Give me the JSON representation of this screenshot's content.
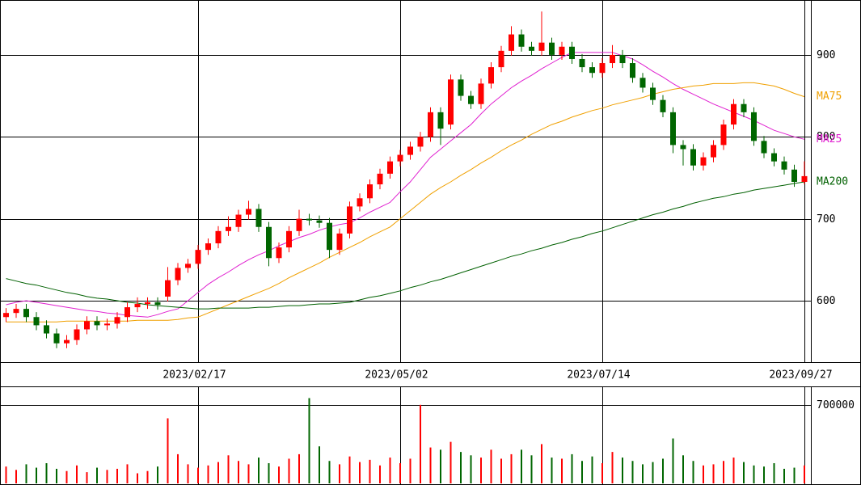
{
  "chart_data": [
    {
      "type": "candlestick",
      "categories": [
        null,
        null,
        null,
        null,
        null,
        null,
        null,
        null,
        null,
        null,
        null,
        null,
        null,
        null,
        null,
        null,
        null,
        null,
        null,
        "2023/02/17",
        null,
        null,
        null,
        null,
        null,
        null,
        null,
        null,
        null,
        null,
        null,
        null,
        null,
        null,
        null,
        null,
        null,
        null,
        null,
        "2023/05/02",
        null,
        null,
        null,
        null,
        null,
        null,
        null,
        null,
        null,
        null,
        null,
        null,
        null,
        null,
        null,
        null,
        null,
        null,
        null,
        "2023/07/14",
        null,
        null,
        null,
        null,
        null,
        null,
        null,
        null,
        null,
        null,
        null,
        null,
        null,
        null,
        null,
        null,
        null,
        null,
        null,
        "2023/09/27"
      ],
      "open": [
        580,
        585,
        590,
        580,
        570,
        560,
        548,
        552,
        565,
        575,
        570,
        572,
        580,
        592,
        596,
        598,
        605,
        625,
        640,
        645,
        662,
        670,
        685,
        690,
        705,
        712,
        690,
        652,
        665,
        685,
        700,
        698,
        695,
        662,
        682,
        715,
        725,
        742,
        755,
        770,
        778,
        788,
        800,
        830,
        815,
        870,
        850,
        840,
        865,
        885,
        905,
        925,
        910,
        905,
        915,
        900,
        910,
        895,
        885,
        878,
        890,
        900,
        890,
        872,
        860,
        845,
        830,
        790,
        785,
        765,
        775,
        790,
        815,
        840,
        830,
        795,
        780,
        770,
        760,
        745
      ],
      "high": [
        591,
        596,
        596,
        586,
        576,
        566,
        558,
        571,
        581,
        581,
        578,
        586,
        598,
        604,
        604,
        604,
        641,
        646,
        651,
        668,
        676,
        691,
        703,
        711,
        722,
        718,
        696,
        671,
        691,
        711,
        706,
        704,
        701,
        688,
        721,
        731,
        748,
        761,
        776,
        784,
        794,
        806,
        836,
        836,
        876,
        876,
        856,
        871,
        891,
        911,
        935,
        931,
        916,
        953,
        921,
        916,
        916,
        901,
        891,
        896,
        912,
        906,
        896,
        878,
        866,
        851,
        836,
        796,
        791,
        781,
        796,
        821,
        846,
        846,
        836,
        801,
        786,
        776,
        766,
        770
      ],
      "low": [
        574,
        579,
        574,
        564,
        554,
        542,
        542,
        546,
        559,
        564,
        564,
        566,
        574,
        586,
        590,
        589,
        599,
        619,
        634,
        639,
        656,
        664,
        679,
        684,
        699,
        684,
        642,
        646,
        659,
        679,
        692,
        689,
        652,
        656,
        676,
        709,
        719,
        736,
        749,
        764,
        772,
        782,
        794,
        790,
        809,
        844,
        834,
        834,
        859,
        879,
        899,
        904,
        899,
        899,
        894,
        894,
        889,
        879,
        872,
        872,
        884,
        884,
        866,
        854,
        839,
        824,
        780,
        765,
        759,
        759,
        769,
        784,
        809,
        824,
        789,
        774,
        764,
        754,
        739,
        742
      ],
      "close": [
        585,
        590,
        580,
        570,
        560,
        548,
        552,
        565,
        575,
        570,
        572,
        580,
        592,
        596,
        598,
        595,
        625,
        640,
        645,
        662,
        670,
        685,
        690,
        705,
        712,
        690,
        652,
        665,
        685,
        700,
        698,
        695,
        662,
        682,
        715,
        725,
        742,
        755,
        770,
        778,
        788,
        800,
        830,
        810,
        870,
        850,
        840,
        865,
        885,
        905,
        925,
        910,
        905,
        915,
        900,
        910,
        895,
        885,
        878,
        890,
        900,
        890,
        872,
        860,
        845,
        830,
        790,
        785,
        765,
        775,
        790,
        815,
        840,
        830,
        795,
        780,
        770,
        760,
        745,
        752
      ],
      "up_color": "#ff0000",
      "down_color": "#006600",
      "series": [
        {
          "name": "MA25",
          "color": "#e020d0",
          "values": [
            595,
            598,
            600,
            598,
            596,
            594,
            592,
            590,
            588,
            587,
            585,
            584,
            582,
            581,
            580,
            583,
            587,
            590,
            600,
            610,
            620,
            628,
            635,
            643,
            650,
            656,
            661,
            667,
            672,
            677,
            681,
            686,
            690,
            693,
            695,
            701,
            708,
            714,
            720,
            733,
            745,
            760,
            775,
            785,
            795,
            805,
            815,
            828,
            840,
            850,
            860,
            868,
            875,
            883,
            890,
            897,
            903,
            903,
            903,
            903,
            903,
            899,
            895,
            888,
            880,
            873,
            865,
            858,
            852,
            846,
            840,
            835,
            830,
            825,
            820,
            814,
            808,
            804,
            800,
            797
          ]
        },
        {
          "name": "MA75",
          "color": "#f0a000",
          "values": [
            574,
            574,
            574,
            574,
            574,
            574,
            575,
            575,
            575,
            575,
            575,
            575,
            575,
            576,
            576,
            576,
            576,
            577,
            579,
            580,
            585,
            590,
            595,
            600,
            605,
            610,
            615,
            621,
            628,
            634,
            640,
            646,
            653,
            659,
            665,
            671,
            678,
            684,
            690,
            700,
            710,
            720,
            730,
            738,
            745,
            753,
            760,
            768,
            775,
            783,
            790,
            796,
            803,
            809,
            815,
            819,
            824,
            828,
            832,
            835,
            839,
            842,
            845,
            848,
            852,
            855,
            858,
            860,
            862,
            863,
            865,
            865,
            865,
            866,
            866,
            864,
            862,
            858,
            853,
            849
          ]
        },
        {
          "name": "MA200",
          "color": "#006000",
          "values": [
            627,
            624,
            621,
            619,
            616,
            613,
            610,
            608,
            605,
            603,
            602,
            600,
            598,
            597,
            595,
            594,
            593,
            592,
            591,
            590,
            590,
            591,
            591,
            591,
            591,
            592,
            592,
            593,
            594,
            594,
            595,
            596,
            596,
            597,
            598,
            601,
            604,
            606,
            609,
            612,
            616,
            619,
            623,
            626,
            630,
            634,
            638,
            642,
            646,
            650,
            654,
            657,
            661,
            664,
            668,
            671,
            675,
            678,
            682,
            685,
            689,
            693,
            697,
            701,
            705,
            708,
            712,
            715,
            719,
            722,
            725,
            727,
            730,
            732,
            735,
            737,
            739,
            741,
            743,
            745
          ]
        }
      ],
      "ylim": [
        525,
        967
      ],
      "yticks": [
        600,
        700,
        800,
        900
      ],
      "grid": true
    },
    {
      "type": "bar",
      "values": [
        150000,
        120000,
        170000,
        140000,
        180000,
        130000,
        110000,
        160000,
        100000,
        140000,
        120000,
        130000,
        170000,
        90000,
        110000,
        150000,
        580000,
        260000,
        170000,
        140000,
        160000,
        190000,
        250000,
        200000,
        170000,
        230000,
        180000,
        150000,
        220000,
        260000,
        760000,
        330000,
        200000,
        170000,
        240000,
        190000,
        210000,
        160000,
        230000,
        180000,
        220000,
        700000,
        320000,
        300000,
        370000,
        280000,
        250000,
        230000,
        300000,
        220000,
        260000,
        300000,
        250000,
        350000,
        230000,
        220000,
        260000,
        200000,
        240000,
        180000,
        280000,
        230000,
        200000,
        170000,
        190000,
        220000,
        400000,
        250000,
        200000,
        160000,
        170000,
        200000,
        230000,
        190000,
        160000,
        150000,
        180000,
        130000,
        140000,
        160000
      ],
      "ylim": [
        0,
        850000
      ],
      "yticks": [
        700000
      ],
      "grid": true
    }
  ]
}
